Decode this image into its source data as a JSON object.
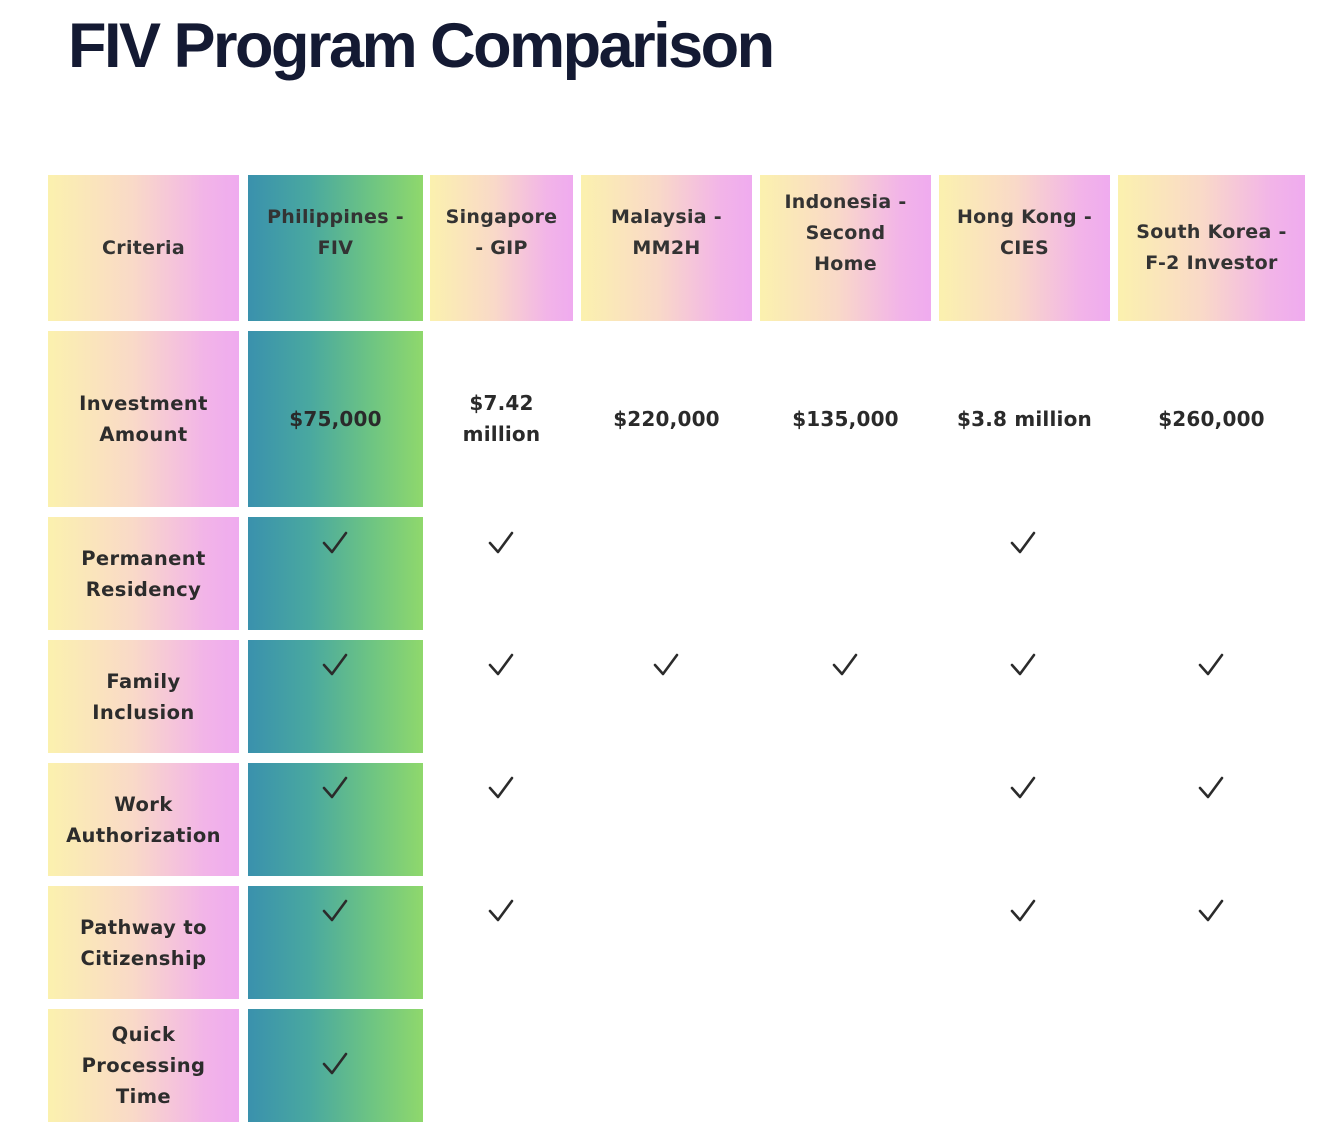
{
  "page": {
    "title": "FIV Program Comparison"
  },
  "table": {
    "criteria_header": "Criteria",
    "programs": [
      {
        "name": "Philippines -\nFIV",
        "investment": "$75,000"
      },
      {
        "name": "Singapore\n- GIP",
        "investment": "$7.42\nmillion"
      },
      {
        "name": "Malaysia -\nMM2H",
        "investment": "$220,000"
      },
      {
        "name": "Indonesia -\nSecond\nHome",
        "investment": "$135,000"
      },
      {
        "name": "Hong Kong -\nCIES",
        "investment": "$3.8 million"
      },
      {
        "name": "South Korea -\nF-2 Investor",
        "investment": "$260,000"
      }
    ],
    "rows": [
      {
        "criterion": "Investment\nAmount"
      },
      {
        "criterion": "Permanent\nResidency",
        "checks": [
          true,
          true,
          false,
          false,
          true,
          false
        ]
      },
      {
        "criterion": "Family\nInclusion",
        "checks": [
          true,
          true,
          true,
          true,
          true,
          true
        ]
      },
      {
        "criterion": "Work\nAuthorization",
        "checks": [
          true,
          true,
          false,
          false,
          true,
          true
        ]
      },
      {
        "criterion": "Pathway to\nCitizenship",
        "checks": [
          true,
          true,
          false,
          false,
          true,
          true
        ]
      },
      {
        "criterion": "Quick\nProcessing\nTime",
        "checks": [
          true,
          false,
          false,
          false,
          false,
          false
        ]
      }
    ],
    "colors": {
      "highlight_start": "#3a91ad",
      "highlight_end": "#8fd86c",
      "label_start": "#fbf1ae",
      "label_end": "#efabef",
      "check": "#2b2b2b",
      "title": "#141a33"
    }
  }
}
